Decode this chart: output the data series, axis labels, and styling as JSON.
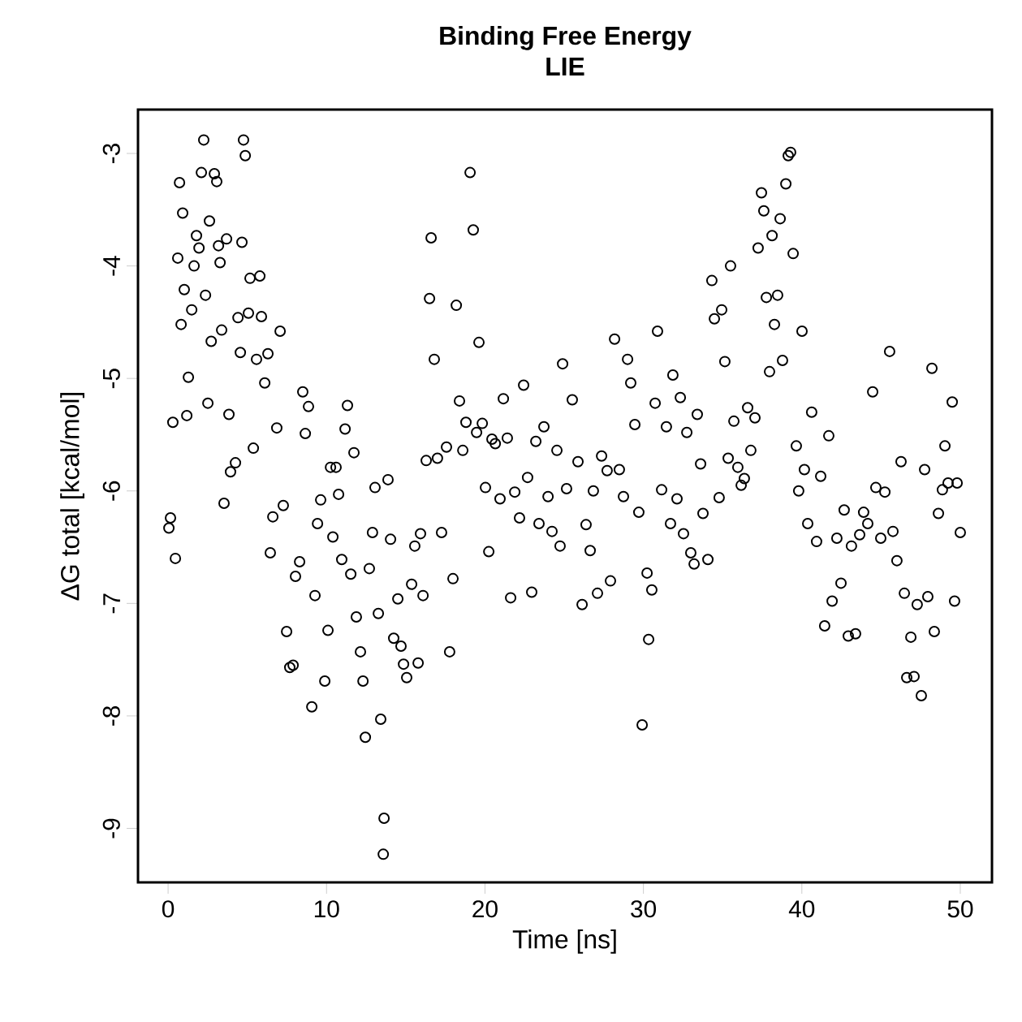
{
  "chart_data": {
    "type": "scatter",
    "title": "Binding Free Energy",
    "subtitle": "LIE",
    "xlabel": "Time [ns]",
    "ylabel": "ΔG total [kcal/mol]",
    "xlim": [
      -1.9,
      52.0
    ],
    "ylim": [
      -9.48,
      -2.61
    ],
    "xticks": [
      0,
      10,
      20,
      30,
      40,
      50
    ],
    "yticks": [
      -9,
      -8,
      -7,
      -6,
      -5,
      -4,
      -3
    ],
    "grid": false,
    "marker": "circle",
    "series": [
      {
        "color": "#000000",
        "x": [
          0.05,
          0.15,
          0.3,
          0.46,
          0.61,
          0.72,
          0.82,
          0.92,
          1.02,
          1.18,
          1.28,
          1.49,
          1.64,
          1.79,
          1.95,
          2.1,
          2.25,
          2.36,
          2.51,
          2.61,
          2.72,
          2.92,
          3.07,
          3.18,
          3.28,
          3.38,
          3.53,
          3.69,
          3.84,
          3.94,
          4.25,
          4.41,
          4.56,
          4.66,
          4.76,
          4.87,
          5.07,
          5.17,
          5.38,
          5.58,
          5.79,
          5.89,
          6.1,
          6.3,
          6.45,
          6.61,
          6.86,
          7.07,
          7.27,
          7.48,
          7.68,
          7.89,
          8.04,
          8.3,
          8.5,
          8.66,
          8.86,
          9.07,
          9.27,
          9.43,
          9.63,
          9.89,
          10.09,
          10.25,
          10.4,
          10.6,
          10.76,
          10.96,
          11.17,
          11.32,
          11.53,
          11.73,
          11.88,
          12.14,
          12.3,
          12.45,
          12.7,
          12.9,
          13.06,
          13.27,
          13.42,
          13.58,
          13.63,
          13.88,
          14.04,
          14.24,
          14.5,
          14.7,
          14.86,
          15.06,
          15.37,
          15.57,
          15.78,
          15.93,
          16.09,
          16.29,
          16.5,
          16.6,
          16.8,
          17.0,
          17.26,
          17.57,
          17.77,
          17.98,
          18.19,
          18.39,
          18.6,
          18.8,
          19.06,
          19.26,
          19.47,
          19.62,
          19.83,
          20.03,
          20.24,
          20.44,
          20.65,
          20.95,
          21.16,
          21.41,
          21.62,
          21.88,
          22.18,
          22.44,
          22.69,
          22.95,
          23.21,
          23.41,
          23.72,
          23.98,
          24.23,
          24.54,
          24.74,
          24.9,
          25.15,
          25.51,
          25.87,
          26.13,
          26.38,
          26.64,
          26.84,
          27.1,
          27.36,
          27.71,
          27.92,
          28.18,
          28.48,
          28.74,
          29.0,
          29.2,
          29.46,
          29.71,
          29.92,
          30.23,
          30.33,
          30.53,
          30.74,
          30.89,
          31.15,
          31.45,
          31.71,
          31.86,
          32.12,
          32.33,
          32.53,
          32.74,
          32.99,
          33.2,
          33.4,
          33.61,
          33.76,
          34.07,
          34.32,
          34.48,
          34.78,
          34.94,
          35.14,
          35.35,
          35.5,
          35.71,
          35.96,
          36.17,
          36.37,
          36.58,
          36.78,
          37.04,
          37.24,
          37.45,
          37.6,
          37.76,
          37.96,
          38.12,
          38.27,
          38.47,
          38.63,
          38.78,
          38.99,
          39.14,
          39.29,
          39.45,
          39.65,
          39.8,
          40.01,
          40.16,
          40.37,
          40.62,
          40.93,
          41.19,
          41.44,
          41.7,
          41.91,
          42.21,
          42.47,
          42.67,
          42.93,
          43.13,
          43.39,
          43.65,
          43.9,
          44.16,
          44.47,
          44.67,
          44.98,
          45.24,
          45.54,
          45.75,
          46.0,
          46.26,
          46.47,
          46.62,
          46.88,
          47.08,
          47.28,
          47.54,
          47.75,
          47.95,
          48.21,
          48.36,
          48.62,
          48.87,
          49.03,
          49.23,
          49.49,
          49.64,
          49.8,
          50.0
        ],
        "values": [
          -6.33,
          -6.24,
          -5.39,
          -6.6,
          -3.93,
          -3.26,
          -4.52,
          -3.53,
          -4.21,
          -5.33,
          -4.99,
          -4.39,
          -4.0,
          -3.73,
          -3.84,
          -3.17,
          -2.88,
          -4.26,
          -5.22,
          -3.6,
          -4.67,
          -3.18,
          -3.25,
          -3.82,
          -3.97,
          -4.57,
          -6.11,
          -3.76,
          -5.32,
          -5.83,
          -5.75,
          -4.46,
          -4.77,
          -3.79,
          -2.88,
          -3.02,
          -4.42,
          -4.11,
          -5.62,
          -4.83,
          -4.09,
          -4.45,
          -5.04,
          -4.78,
          -6.55,
          -6.23,
          -5.44,
          -4.58,
          -6.13,
          -7.25,
          -7.57,
          -7.55,
          -6.76,
          -6.63,
          -5.12,
          -5.49,
          -5.25,
          -7.92,
          -6.93,
          -6.29,
          -6.08,
          -7.69,
          -7.24,
          -5.79,
          -6.41,
          -5.79,
          -6.03,
          -6.61,
          -5.45,
          -5.24,
          -6.74,
          -5.66,
          -7.12,
          -7.43,
          -7.69,
          -8.19,
          -6.69,
          -6.37,
          -5.97,
          -7.09,
          -8.03,
          -9.23,
          -8.91,
          -5.9,
          -6.43,
          -7.31,
          -6.96,
          -7.38,
          -7.54,
          -7.66,
          -6.83,
          -6.49,
          -7.53,
          -6.38,
          -6.93,
          -5.73,
          -4.29,
          -3.75,
          -4.83,
          -5.71,
          -6.37,
          -5.61,
          -7.43,
          -6.78,
          -4.35,
          -5.2,
          -5.64,
          -5.39,
          -3.17,
          -3.68,
          -5.48,
          -4.68,
          -5.4,
          -5.97,
          -6.54,
          -5.54,
          -5.58,
          -6.07,
          -5.18,
          -5.53,
          -6.95,
          -6.01,
          -6.24,
          -5.06,
          -5.88,
          -6.9,
          -5.56,
          -6.29,
          -5.43,
          -6.05,
          -6.36,
          -5.64,
          -6.49,
          -4.87,
          -5.98,
          -5.19,
          -5.74,
          -7.01,
          -6.3,
          -6.53,
          -6.0,
          -6.91,
          -5.69,
          -5.82,
          -6.8,
          -4.65,
          -5.81,
          -6.05,
          -4.83,
          -5.04,
          -5.41,
          -6.19,
          -8.08,
          -6.73,
          -7.32,
          -6.88,
          -5.22,
          -4.58,
          -5.99,
          -5.43,
          -6.29,
          -4.97,
          -6.07,
          -5.17,
          -6.38,
          -5.48,
          -6.55,
          -6.65,
          -5.32,
          -5.76,
          -6.2,
          -6.61,
          -4.13,
          -4.47,
          -6.06,
          -4.39,
          -4.85,
          -5.71,
          -4.0,
          -5.38,
          -5.79,
          -5.95,
          -5.89,
          -5.26,
          -5.64,
          -5.35,
          -3.84,
          -3.35,
          -3.51,
          -4.28,
          -4.94,
          -3.73,
          -4.52,
          -4.26,
          -3.58,
          -4.84,
          -3.27,
          -3.02,
          -2.99,
          -3.89,
          -5.6,
          -6.0,
          -4.58,
          -5.81,
          -6.29,
          -5.3,
          -6.45,
          -5.87,
          -7.2,
          -5.51,
          -6.98,
          -6.42,
          -6.82,
          -6.17,
          -7.29,
          -6.49,
          -7.27,
          -6.39,
          -6.19,
          -6.29,
          -5.12,
          -5.97,
          -6.42,
          -6.01,
          -4.76,
          -6.36,
          -6.62,
          -5.74,
          -6.91,
          -7.66,
          -7.3,
          -7.65,
          -7.01,
          -7.82,
          -5.81,
          -6.94,
          -4.91,
          -7.25,
          -6.2,
          -5.99,
          -5.6,
          -5.93,
          -5.21,
          -6.98,
          -5.93,
          -6.37
        ]
      }
    ]
  }
}
